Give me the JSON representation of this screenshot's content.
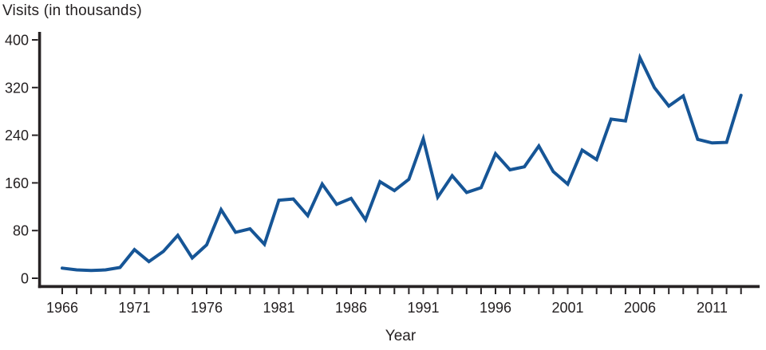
{
  "chart_data": {
    "type": "line",
    "title": "Visits (in thousands)",
    "xlabel": "Year",
    "ylabel": "Visits (in thousands)",
    "x": [
      1966,
      1967,
      1968,
      1969,
      1970,
      1971,
      1972,
      1973,
      1974,
      1975,
      1976,
      1977,
      1978,
      1979,
      1980,
      1981,
      1982,
      1983,
      1984,
      1985,
      1986,
      1987,
      1988,
      1989,
      1990,
      1991,
      1992,
      1993,
      1994,
      1995,
      1996,
      1997,
      1998,
      1999,
      2000,
      2001,
      2002,
      2003,
      2004,
      2005,
      2006,
      2007,
      2008,
      2009,
      2010,
      2011,
      2012,
      2013
    ],
    "values": [
      17,
      14,
      13,
      14,
      18,
      48,
      28,
      45,
      72,
      34,
      56,
      115,
      77,
      83,
      57,
      131,
      133,
      105,
      158,
      124,
      134,
      98,
      162,
      147,
      166,
      234,
      136,
      172,
      144,
      152,
      209,
      182,
      187,
      222,
      179,
      158,
      215,
      199,
      267,
      264,
      370,
      320,
      289,
      306,
      233,
      227,
      228,
      307
    ],
    "y_ticks": [
      0,
      80,
      160,
      240,
      320,
      400
    ],
    "x_tick_labels": [
      1966,
      1971,
      1976,
      1981,
      1986,
      1991,
      1996,
      2001,
      2006,
      2011
    ],
    "xlim": [
      1966,
      2013
    ],
    "ylim": [
      0,
      400
    ],
    "grid": false,
    "legend": "none",
    "line_color": "#165596",
    "axis_color": "#272324",
    "text_color": "#231f20"
  }
}
